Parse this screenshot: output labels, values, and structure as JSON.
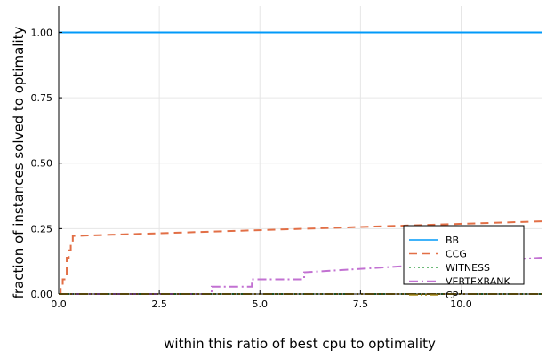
{
  "chart_data": {
    "type": "line",
    "title": "",
    "xlabel": "within this ratio of best cpu to optimality",
    "ylabel": "fraction of instances solved to optimality",
    "xlim": [
      0,
      12.0
    ],
    "ylim": [
      0,
      1.1
    ],
    "xticks": [
      0.0,
      2.5,
      5.0,
      7.5,
      10.0
    ],
    "xtick_labels": [
      "0.0",
      "2.5",
      "5.0",
      "7.5",
      "10.0"
    ],
    "yticks": [
      0.0,
      0.25,
      0.5,
      0.75,
      1.0
    ],
    "ytick_labels": [
      "0.00",
      "0.25",
      "0.50",
      "0.75",
      "1.00"
    ],
    "grid": true,
    "legend_position": "bottom-right",
    "series": [
      {
        "name": "BB",
        "color": "#009af9",
        "dash": "solid",
        "x": [
          0,
          12.0
        ],
        "y": [
          1.0,
          1.0
        ]
      },
      {
        "name": "CCG",
        "color": "#e26f46",
        "dash": "dashed",
        "x": [
          0,
          0.05,
          0.05,
          0.1,
          0.1,
          0.2,
          0.2,
          0.25,
          0.25,
          0.3,
          0.3,
          0.35,
          0.35,
          12.0
        ],
        "y": [
          0.0,
          0.0,
          0.028,
          0.028,
          0.056,
          0.056,
          0.139,
          0.139,
          0.167,
          0.167,
          0.194,
          0.194,
          0.222,
          0.278
        ]
      },
      {
        "name": "WITNESS",
        "color": "#3da44d",
        "dash": "dotted",
        "x": [
          0,
          12.0
        ],
        "y": [
          0.0,
          0.0
        ]
      },
      {
        "name": "VERTEXRANK",
        "color": "#c271d2",
        "dash": "dashdot",
        "x": [
          0,
          3.8,
          3.8,
          4.8,
          4.8,
          6.1,
          6.1,
          12.0
        ],
        "y": [
          0.0,
          0.0,
          0.028,
          0.028,
          0.056,
          0.056,
          0.083,
          0.139
        ]
      },
      {
        "name": "CP",
        "color": "#ac8d18",
        "dash": "dashdotdot",
        "x": [
          0,
          12.0
        ],
        "y": [
          0.0,
          0.0
        ]
      }
    ]
  }
}
